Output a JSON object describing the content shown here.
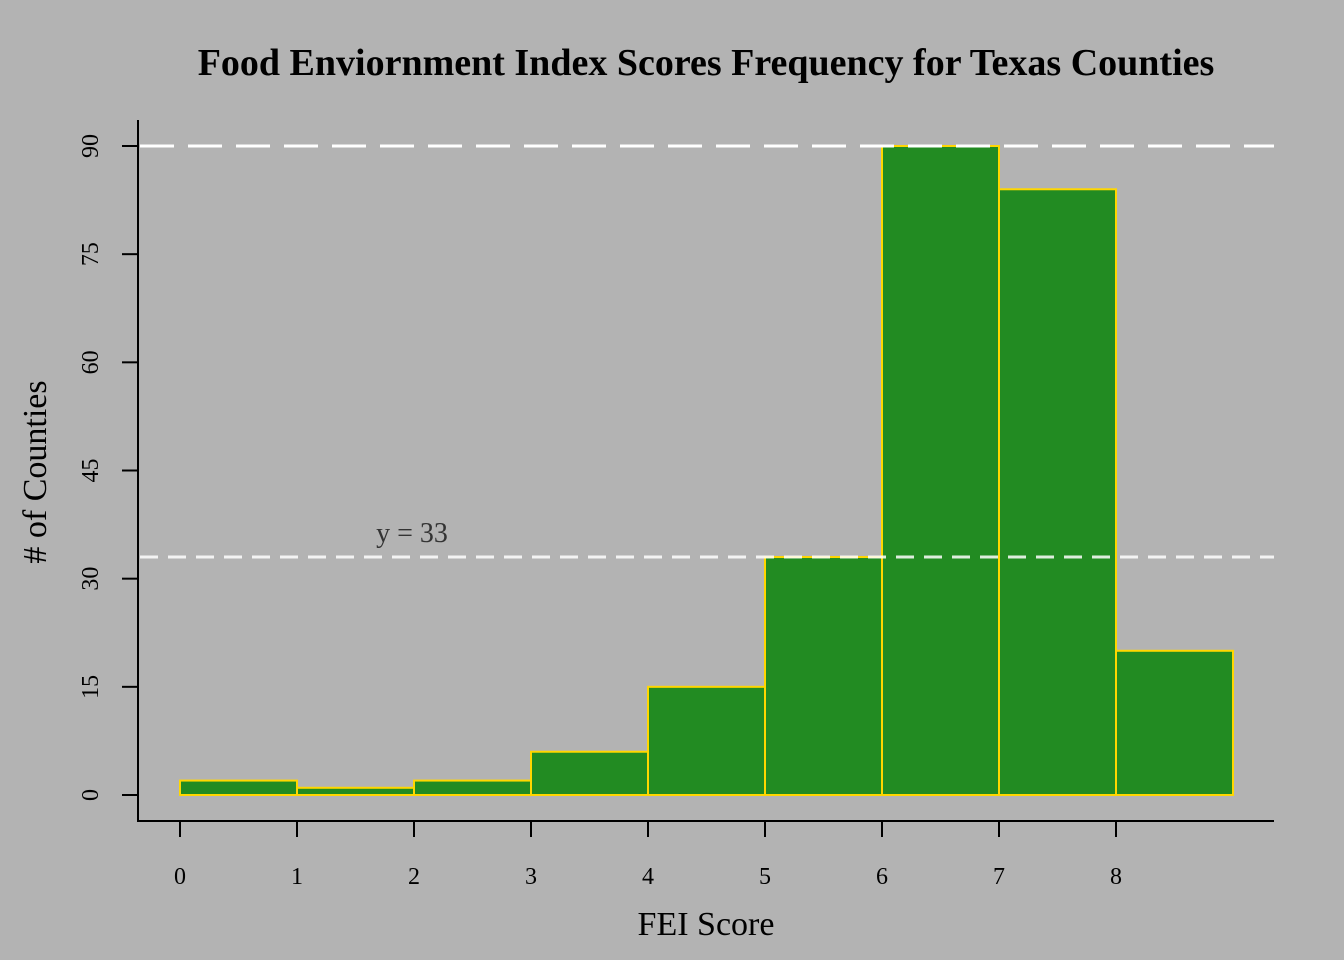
{
  "chart_data": {
    "type": "bar",
    "title": "Food Enviornment Index Scores Frequency for Texas Counties",
    "xlabel": "FEI Score",
    "ylabel": "# of Counties",
    "bins": [
      {
        "x0": 0,
        "x1": 1,
        "count": 2
      },
      {
        "x0": 1,
        "x1": 2,
        "count": 1
      },
      {
        "x0": 2,
        "x1": 3,
        "count": 2
      },
      {
        "x0": 3,
        "x1": 4,
        "count": 6
      },
      {
        "x0": 4,
        "x1": 5,
        "count": 15
      },
      {
        "x0": 5,
        "x1": 6,
        "count": 33
      },
      {
        "x0": 6,
        "x1": 7,
        "count": 90
      },
      {
        "x0": 7,
        "x1": 8,
        "count": 84
      },
      {
        "x0": 8,
        "x1": 9,
        "count": 20
      }
    ],
    "xticks": [
      "0",
      "1",
      "2",
      "3",
      "4",
      "5",
      "6",
      "7",
      "8"
    ],
    "yticks": [
      "0",
      "15",
      "30",
      "45",
      "60",
      "75",
      "90"
    ],
    "xlim": [
      0,
      9
    ],
    "ylim": [
      0,
      90
    ],
    "reference_lines": [
      {
        "y": 90,
        "style": "dashed",
        "label": ""
      },
      {
        "y": 33,
        "style": "dashed",
        "label": "y = 33"
      }
    ],
    "colors": {
      "background": "#b3b3b3",
      "bar_fill": "#228b22",
      "bar_border": "#ffd700",
      "reference_line": "#ffffff",
      "axis": "#000000"
    },
    "grid": false,
    "legend": "none"
  }
}
